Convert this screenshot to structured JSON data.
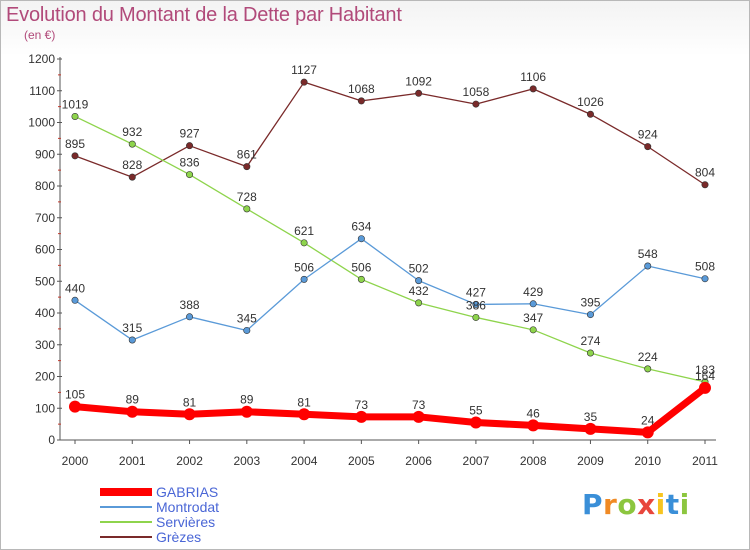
{
  "header": {
    "title": "Evolution du Montant de la Dette par Habitant",
    "subtitle": "(en €)"
  },
  "logo": {
    "text": "Proxiti"
  },
  "chart_data": {
    "type": "line",
    "title": "Evolution du Montant de la Dette par Habitant",
    "subtitle": "(en €)",
    "x": [
      "2000",
      "2001",
      "2002",
      "2003",
      "2004",
      "2005",
      "2006",
      "2007",
      "2008",
      "2009",
      "2010",
      "2011"
    ],
    "yticks": [
      "0",
      "100",
      "200",
      "300",
      "400",
      "500",
      "600",
      "700",
      "800",
      "900",
      "1000",
      "1100",
      "1200"
    ],
    "ylim": [
      0,
      1200
    ],
    "grid": false,
    "legend_placement": "bottom-left",
    "series": [
      {
        "name": "GABRIAS",
        "color": "#ff0000",
        "values": [
          105,
          89,
          81,
          89,
          81,
          73,
          73,
          55,
          46,
          35,
          24,
          164
        ],
        "labels": [
          "105",
          "89",
          "81",
          "89",
          "81",
          "73",
          "73",
          "55",
          "46",
          "35",
          "24",
          "164"
        ]
      },
      {
        "name": "Montrodat",
        "color": "#5a9ad8",
        "values": [
          440,
          315,
          388,
          345,
          506,
          634,
          502,
          427,
          429,
          395,
          548,
          508
        ],
        "labels": [
          "440",
          "315",
          "388",
          "345",
          "506",
          "634",
          "502",
          "427",
          "429",
          "395",
          "548",
          "508"
        ]
      },
      {
        "name": "Servières",
        "color": "#8ed44c",
        "values": [
          1019,
          932,
          836,
          728,
          621,
          506,
          432,
          386,
          347,
          274,
          224,
          183
        ],
        "labels": [
          "1019",
          "932",
          "836",
          "728",
          "621",
          "506",
          "432",
          "386",
          "347",
          "274",
          "224",
          "183"
        ]
      },
      {
        "name": "Grèzes",
        "color": "#7a2a2a",
        "values": [
          895,
          828,
          927,
          861,
          1127,
          1068,
          1092,
          1058,
          1106,
          1026,
          924,
          804
        ],
        "labels": [
          "895",
          "828",
          "927",
          "861",
          "1127",
          "1068",
          "1092",
          "1058",
          "1106",
          "1026",
          "924",
          "804"
        ]
      }
    ]
  }
}
